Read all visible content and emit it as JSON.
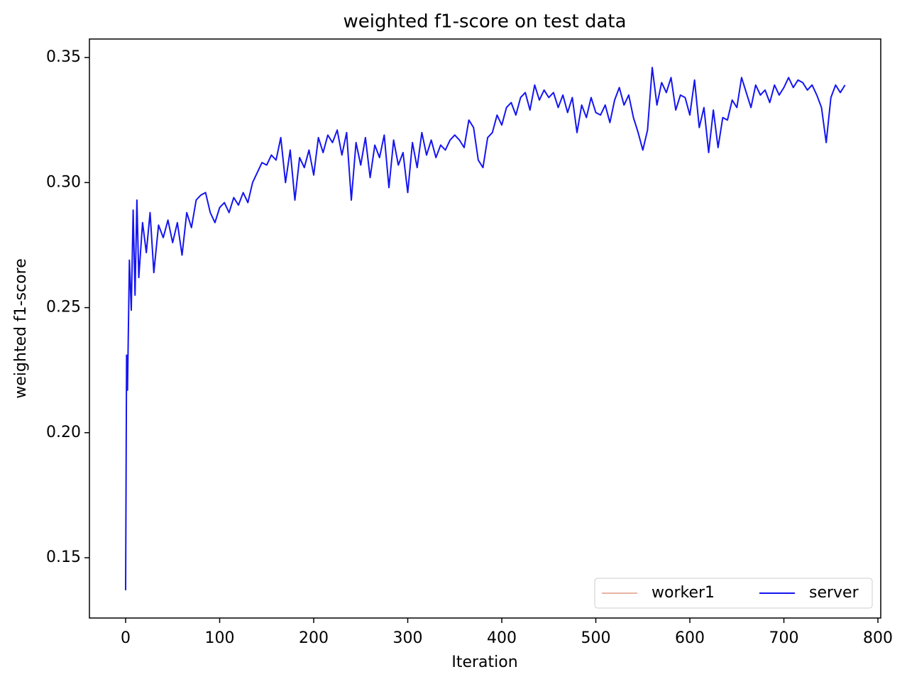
{
  "chart_data": {
    "type": "line",
    "title": "weighted f1-score on test data",
    "x_label": "Iteration",
    "y_label": "weighted f1-score",
    "xlim": [
      -38.5,
      803
    ],
    "ylim": [
      0.1259,
      0.3574
    ],
    "xticks": [
      0,
      100,
      200,
      300,
      400,
      500,
      600,
      700,
      800
    ],
    "yticks": [
      0.15,
      {
        "value": 0.2,
        "label": "0.20"
      },
      0.25,
      {
        "value": 0.3,
        "label": "0.30"
      },
      0.35
    ],
    "grid": false,
    "legend": "lower right",
    "series": [
      {
        "name": "worker1",
        "color": "#eab4a4",
        "x": [],
        "values": []
      },
      {
        "name": "server",
        "color": "#1515f0",
        "x": [
          0,
          1,
          2,
          4,
          6,
          8,
          10,
          12,
          14,
          18,
          22,
          26,
          30,
          35,
          40,
          45,
          50,
          55,
          60,
          65,
          70,
          75,
          80,
          85,
          90,
          95,
          100,
          105,
          110,
          115,
          120,
          125,
          130,
          135,
          140,
          145,
          150,
          155,
          160,
          165,
          170,
          175,
          180,
          185,
          190,
          195,
          200,
          205,
          210,
          215,
          220,
          225,
          230,
          235,
          240,
          245,
          250,
          255,
          260,
          265,
          270,
          275,
          280,
          285,
          290,
          295,
          300,
          305,
          310,
          315,
          320,
          325,
          330,
          335,
          340,
          345,
          350,
          355,
          360,
          365,
          370,
          375,
          380,
          385,
          390,
          395,
          400,
          405,
          410,
          415,
          420,
          425,
          430,
          435,
          440,
          445,
          450,
          455,
          460,
          465,
          470,
          475,
          480,
          485,
          490,
          495,
          500,
          505,
          510,
          515,
          520,
          525,
          530,
          535,
          540,
          545,
          550,
          555,
          560,
          565,
          570,
          575,
          580,
          585,
          590,
          595,
          600,
          605,
          610,
          615,
          620,
          625,
          630,
          635,
          640,
          645,
          650,
          655,
          660,
          665,
          670,
          675,
          680,
          685,
          690,
          695,
          700,
          705,
          710,
          715,
          720,
          725,
          730,
          735,
          740,
          745,
          750,
          755,
          760,
          765
        ],
        "values": [
          0.137,
          0.231,
          0.217,
          0.269,
          0.249,
          0.289,
          0.255,
          0.293,
          0.262,
          0.284,
          0.272,
          0.288,
          0.264,
          0.283,
          0.278,
          0.285,
          0.276,
          0.284,
          0.271,
          0.288,
          0.282,
          0.293,
          0.295,
          0.296,
          0.288,
          0.284,
          0.29,
          0.292,
          0.288,
          0.294,
          0.291,
          0.296,
          0.292,
          0.3,
          0.304,
          0.308,
          0.307,
          0.311,
          0.309,
          0.318,
          0.3,
          0.313,
          0.293,
          0.31,
          0.306,
          0.313,
          0.303,
          0.318,
          0.312,
          0.319,
          0.316,
          0.321,
          0.311,
          0.32,
          0.293,
          0.316,
          0.307,
          0.318,
          0.302,
          0.315,
          0.31,
          0.319,
          0.298,
          0.317,
          0.307,
          0.312,
          0.296,
          0.316,
          0.306,
          0.32,
          0.311,
          0.317,
          0.31,
          0.315,
          0.313,
          0.317,
          0.319,
          0.317,
          0.314,
          0.325,
          0.322,
          0.309,
          0.306,
          0.318,
          0.32,
          0.327,
          0.323,
          0.33,
          0.332,
          0.327,
          0.334,
          0.336,
          0.329,
          0.339,
          0.333,
          0.337,
          0.334,
          0.336,
          0.33,
          0.335,
          0.328,
          0.334,
          0.32,
          0.331,
          0.326,
          0.334,
          0.328,
          0.327,
          0.331,
          0.324,
          0.333,
          0.338,
          0.331,
          0.335,
          0.326,
          0.32,
          0.313,
          0.321,
          0.346,
          0.331,
          0.34,
          0.336,
          0.342,
          0.329,
          0.335,
          0.334,
          0.327,
          0.341,
          0.322,
          0.33,
          0.312,
          0.329,
          0.314,
          0.326,
          0.325,
          0.333,
          0.33,
          0.342,
          0.336,
          0.33,
          0.339,
          0.335,
          0.337,
          0.332,
          0.339,
          0.335,
          0.338,
          0.342,
          0.338,
          0.341,
          0.34,
          0.337,
          0.339,
          0.335,
          0.33,
          0.316,
          0.334,
          0.339,
          0.336,
          0.339
        ]
      }
    ]
  }
}
